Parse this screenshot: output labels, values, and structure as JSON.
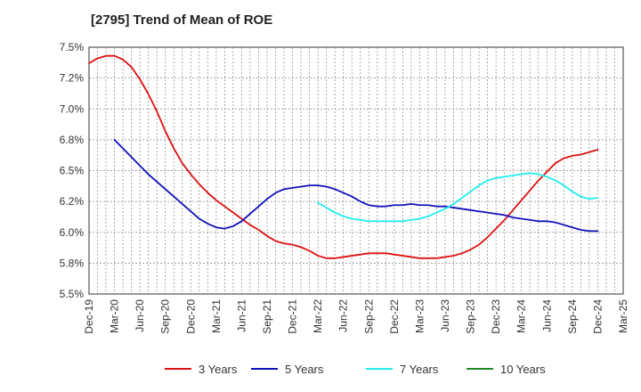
{
  "chart_data": {
    "type": "line",
    "title": "[2795]  Trend of Mean of ROE",
    "xlabel": "",
    "ylabel": "",
    "y_unit": "%",
    "ylim": [
      5.5,
      7.5
    ],
    "y_ticks": [
      "7.5%",
      "7.2%",
      "7.0%",
      "6.8%",
      "6.5%",
      "6.2%",
      "6.0%",
      "5.8%",
      "5.5%"
    ],
    "y_tick_values": [
      7.5,
      7.25,
      7.0,
      6.75,
      6.5,
      6.25,
      6.0,
      5.75,
      5.5
    ],
    "x_ticks": [
      "Dec-19",
      "Mar-20",
      "Jun-20",
      "Sep-20",
      "Dec-20",
      "Mar-21",
      "Jun-21",
      "Sep-21",
      "Dec-21",
      "Mar-22",
      "Jun-22",
      "Sep-22",
      "Dec-22",
      "Mar-23",
      "Jun-23",
      "Sep-23",
      "Dec-23",
      "Mar-24",
      "Jun-24",
      "Sep-24",
      "Dec-24",
      "Mar-25"
    ],
    "grid": true,
    "legend_position": "bottom",
    "series": [
      {
        "name": "3 Years",
        "color": "#dd1111",
        "x": [
          "Dec-19",
          "Jan-20",
          "Feb-20",
          "Mar-20",
          "Apr-20",
          "May-20",
          "Jun-20",
          "Jul-20",
          "Aug-20",
          "Sep-20",
          "Oct-20",
          "Nov-20",
          "Dec-20",
          "Jan-21",
          "Feb-21",
          "Mar-21",
          "Apr-21",
          "May-21",
          "Jun-21",
          "Jul-21",
          "Aug-21",
          "Sep-21",
          "Oct-21",
          "Nov-21",
          "Dec-21",
          "Jan-22",
          "Feb-22",
          "Mar-22",
          "Apr-22",
          "May-22",
          "Jun-22",
          "Jul-22",
          "Aug-22",
          "Sep-22",
          "Oct-22",
          "Nov-22",
          "Dec-22",
          "Jan-23",
          "Feb-23",
          "Mar-23",
          "Apr-23",
          "May-23",
          "Jun-23",
          "Jul-23",
          "Aug-23",
          "Sep-23",
          "Oct-23",
          "Nov-23",
          "Dec-23",
          "Jan-24",
          "Feb-24",
          "Mar-24",
          "Apr-24",
          "May-24",
          "Jun-24",
          "Jul-24",
          "Aug-24",
          "Sep-24",
          "Oct-24",
          "Nov-24",
          "Dec-24"
        ],
        "values": [
          7.37,
          7.41,
          7.43,
          7.43,
          7.4,
          7.34,
          7.24,
          7.12,
          6.98,
          6.82,
          6.68,
          6.56,
          6.47,
          6.39,
          6.32,
          6.26,
          6.21,
          6.16,
          6.11,
          6.06,
          6.02,
          5.97,
          5.93,
          5.91,
          5.9,
          5.88,
          5.85,
          5.81,
          5.79,
          5.79,
          5.8,
          5.81,
          5.82,
          5.83,
          5.83,
          5.83,
          5.82,
          5.81,
          5.8,
          5.79,
          5.79,
          5.79,
          5.8,
          5.81,
          5.83,
          5.86,
          5.9,
          5.96,
          6.03,
          6.1,
          6.18,
          6.26,
          6.34,
          6.42,
          6.49,
          6.56,
          6.6,
          6.62,
          6.63,
          6.65,
          6.67
        ]
      },
      {
        "name": "5 Years",
        "color": "#1111bb",
        "x": [
          "Mar-20",
          "Apr-20",
          "May-20",
          "Jun-20",
          "Jul-20",
          "Aug-20",
          "Sep-20",
          "Oct-20",
          "Nov-20",
          "Dec-20",
          "Jan-21",
          "Feb-21",
          "Mar-21",
          "Apr-21",
          "May-21",
          "Jun-21",
          "Jul-21",
          "Aug-21",
          "Sep-21",
          "Oct-21",
          "Nov-21",
          "Dec-21",
          "Jan-22",
          "Feb-22",
          "Mar-22",
          "Apr-22",
          "May-22",
          "Jun-22",
          "Jul-22",
          "Aug-22",
          "Sep-22",
          "Oct-22",
          "Nov-22",
          "Dec-22",
          "Jan-23",
          "Feb-23",
          "Mar-23",
          "Apr-23",
          "May-23",
          "Jun-23",
          "Jul-23",
          "Aug-23",
          "Sep-23",
          "Oct-23",
          "Nov-23",
          "Dec-23",
          "Jan-24",
          "Feb-24",
          "Mar-24",
          "Apr-24",
          "May-24",
          "Jun-24",
          "Jul-24",
          "Aug-24",
          "Sep-24",
          "Oct-24",
          "Nov-24",
          "Dec-24"
        ],
        "values": [
          6.75,
          6.68,
          6.61,
          6.54,
          6.47,
          6.41,
          6.35,
          6.29,
          6.23,
          6.17,
          6.11,
          6.07,
          6.04,
          6.03,
          6.05,
          6.09,
          6.15,
          6.21,
          6.27,
          6.32,
          6.35,
          6.36,
          6.37,
          6.38,
          6.38,
          6.37,
          6.35,
          6.32,
          6.29,
          6.25,
          6.22,
          6.21,
          6.21,
          6.22,
          6.22,
          6.23,
          6.22,
          6.22,
          6.21,
          6.21,
          6.2,
          6.19,
          6.18,
          6.17,
          6.16,
          6.15,
          6.14,
          6.12,
          6.11,
          6.1,
          6.09,
          6.09,
          6.08,
          6.06,
          6.04,
          6.02,
          6.01,
          6.01
        ]
      },
      {
        "name": "7 Years",
        "color": "#22eeee",
        "x": [
          "Mar-22",
          "Apr-22",
          "May-22",
          "Jun-22",
          "Jul-22",
          "Aug-22",
          "Sep-22",
          "Oct-22",
          "Nov-22",
          "Dec-22",
          "Jan-23",
          "Feb-23",
          "Mar-23",
          "Apr-23",
          "May-23",
          "Jun-23",
          "Jul-23",
          "Aug-23",
          "Sep-23",
          "Oct-23",
          "Nov-23",
          "Dec-23",
          "Jan-24",
          "Feb-24",
          "Mar-24",
          "Apr-24",
          "May-24",
          "Jun-24",
          "Jul-24",
          "Aug-24",
          "Sep-24",
          "Oct-24",
          "Nov-24",
          "Dec-24"
        ],
        "values": [
          6.24,
          6.2,
          6.16,
          6.13,
          6.11,
          6.1,
          6.09,
          6.09,
          6.09,
          6.09,
          6.09,
          6.1,
          6.11,
          6.13,
          6.16,
          6.19,
          6.23,
          6.28,
          6.33,
          6.38,
          6.42,
          6.44,
          6.45,
          6.46,
          6.47,
          6.48,
          6.47,
          6.45,
          6.42,
          6.38,
          6.33,
          6.29,
          6.27,
          6.28
        ]
      },
      {
        "name": "10 Years",
        "color": "#228822",
        "x": [],
        "values": []
      }
    ]
  }
}
